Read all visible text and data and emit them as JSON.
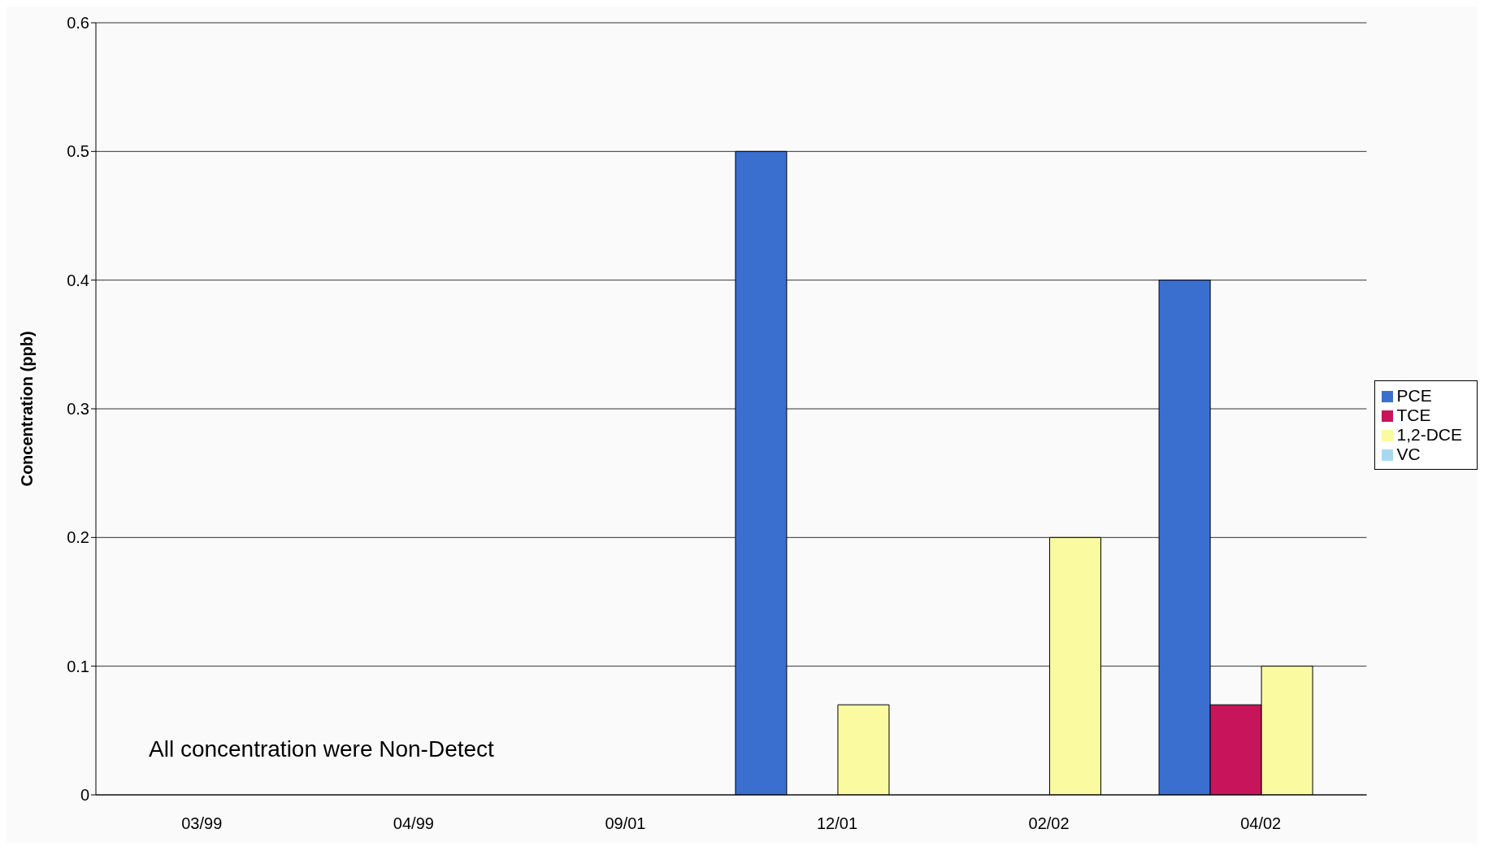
{
  "chart_data": {
    "type": "bar",
    "ylabel": "Concentration (ppb)",
    "categories": [
      "03/99",
      "04/99",
      "09/01",
      "12/01",
      "02/02",
      "04/02"
    ],
    "series": [
      {
        "name": "PCE",
        "color": "#3a6fd0",
        "values": [
          null,
          null,
          null,
          0.5,
          null,
          0.4
        ]
      },
      {
        "name": "TCE",
        "color": "#c8145a",
        "values": [
          null,
          null,
          null,
          null,
          null,
          0.07
        ]
      },
      {
        "name": "1,2-DCE",
        "color": "#fafaa0",
        "values": [
          null,
          null,
          null,
          0.07,
          0.2,
          0.1
        ]
      },
      {
        "name": "VC",
        "color": "#a8d8f0",
        "values": [
          null,
          null,
          null,
          null,
          null,
          null
        ]
      }
    ],
    "ylim": [
      0,
      0.6
    ],
    "yticks": [
      0,
      0.1,
      0.2,
      0.3,
      0.4,
      0.5,
      0.6
    ],
    "grid": "y",
    "legend": "right",
    "annotations": [
      "All concentration were Non-Detect"
    ]
  }
}
